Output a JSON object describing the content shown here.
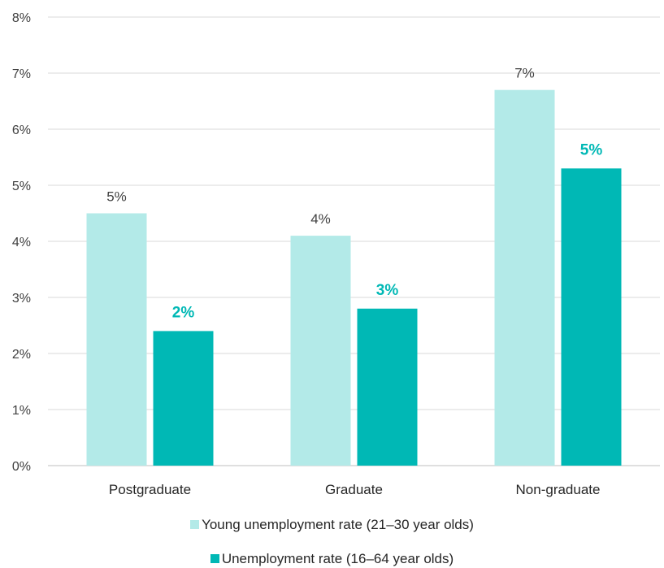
{
  "chart_data": {
    "type": "bar",
    "categories": [
      "Postgraduate",
      "Graduate",
      "Non-graduate"
    ],
    "series": [
      {
        "name": "Young unemployment rate (21–30 year olds)",
        "values": [
          4.5,
          4.1,
          6.7
        ],
        "labels": [
          "5%",
          "4%",
          "7%"
        ],
        "color": "#b3eae8"
      },
      {
        "name": "Unemployment rate (16–64 year olds)",
        "values": [
          2.4,
          2.8,
          5.3
        ],
        "labels": [
          "2%",
          "3%",
          "5%"
        ],
        "color": "#00b8b5"
      }
    ],
    "ylim": [
      0,
      8
    ],
    "yticks": [
      "0%",
      "1%",
      "2%",
      "3%",
      "4%",
      "5%",
      "6%",
      "7%",
      "8%"
    ],
    "grid": true,
    "legend_position": "bottom",
    "title": "",
    "xlabel": "",
    "ylabel": ""
  }
}
